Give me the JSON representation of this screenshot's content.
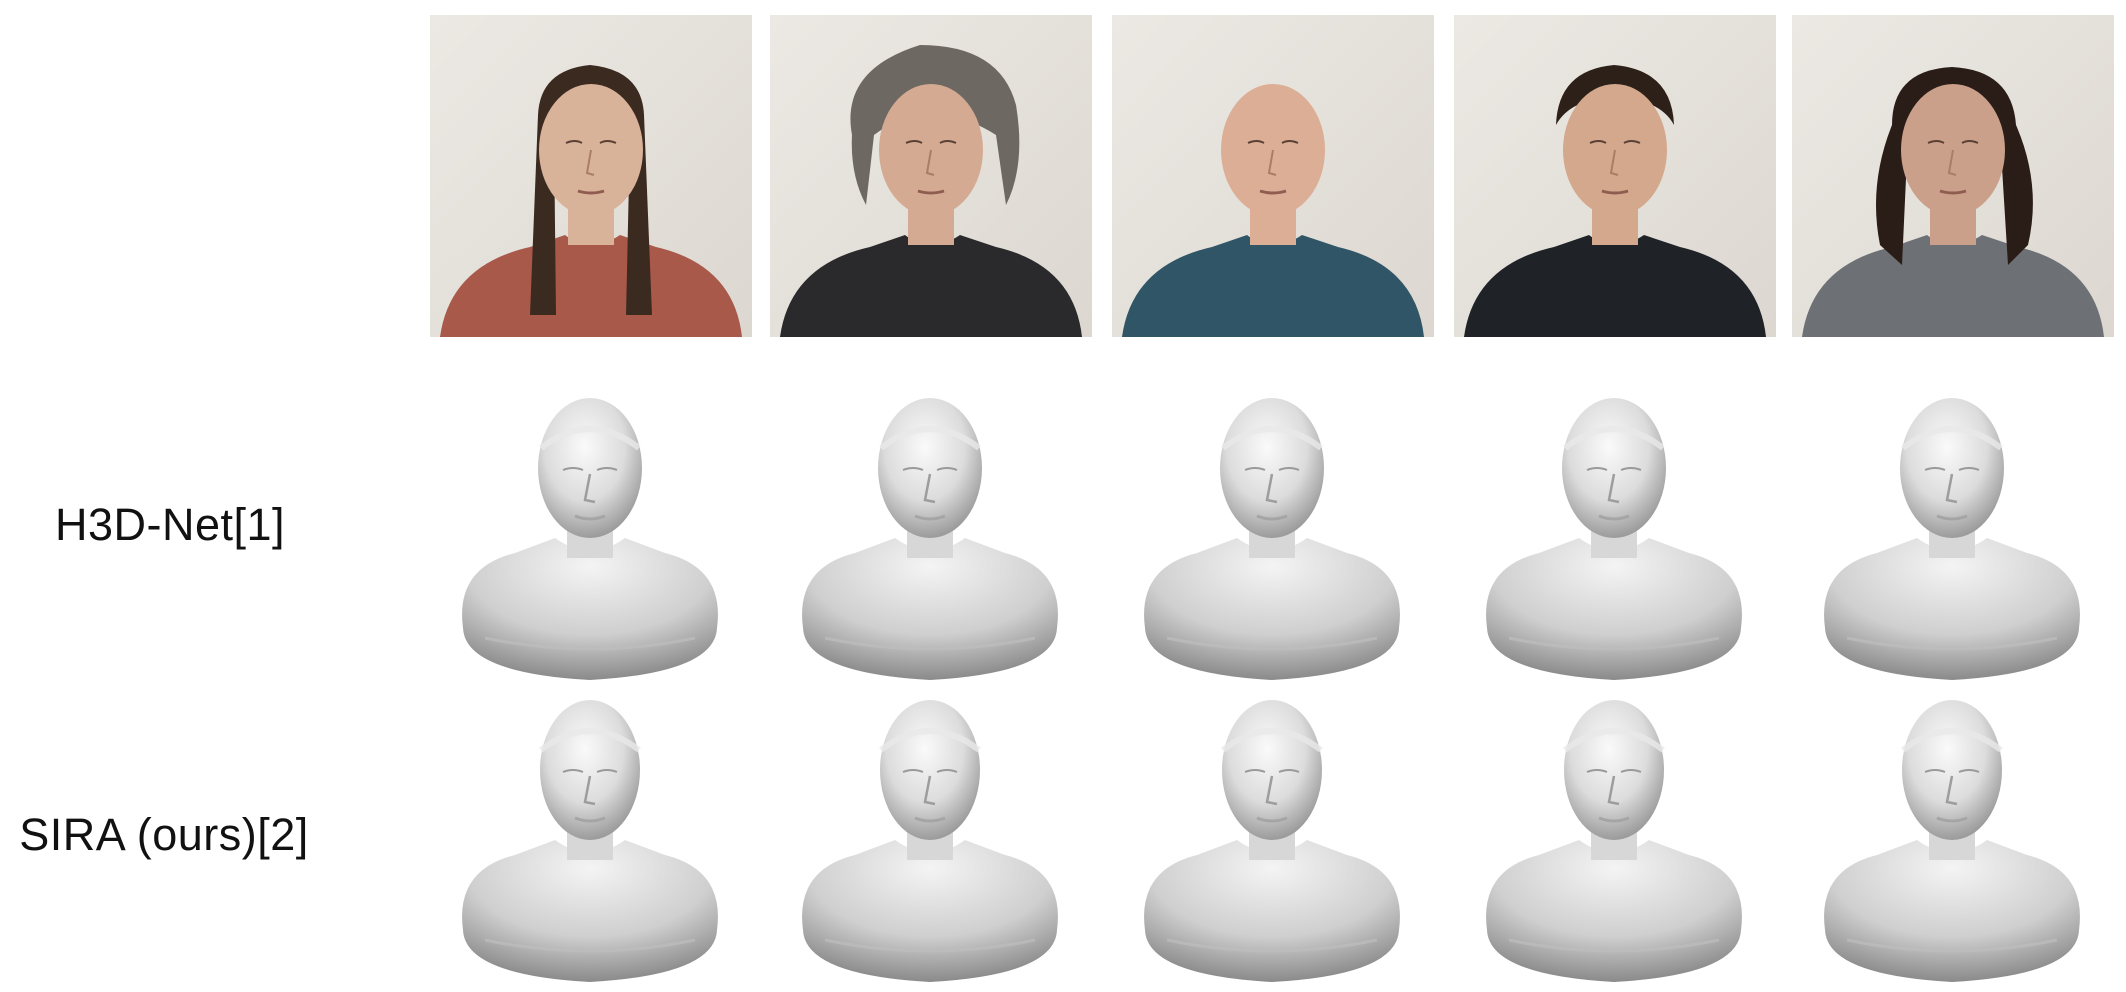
{
  "rows": {
    "h3d_label": "H3D-Net[1]",
    "sira_label": "SIRA (ours)[2]"
  },
  "subjects": [
    {
      "id": 1,
      "shirt_color": "#a8594a",
      "hair_color": "#3b2a20",
      "hair_style": "long",
      "skin": "#d9b29a"
    },
    {
      "id": 2,
      "shirt_color": "#2a2a2c",
      "hair_color": "#6e6862",
      "hair_style": "short-gray",
      "skin": "#d4ab92"
    },
    {
      "id": 3,
      "shirt_color": "#2f5566",
      "hair_color": "#d8ab94",
      "hair_style": "bald",
      "skin": "#dcae95"
    },
    {
      "id": 4,
      "shirt_color": "#1f2226",
      "hair_color": "#2c2018",
      "hair_style": "short",
      "skin": "#d3a88c"
    },
    {
      "id": 5,
      "shirt_color": "#6d7075",
      "hair_color": "#2a1d17",
      "hair_style": "curly-long",
      "skin": "#caa08a"
    }
  ],
  "colors": {
    "photo_background": "#e7e3de",
    "mesh_light": "#f1f1f1",
    "mesh_dark": "#8e8e8e"
  }
}
